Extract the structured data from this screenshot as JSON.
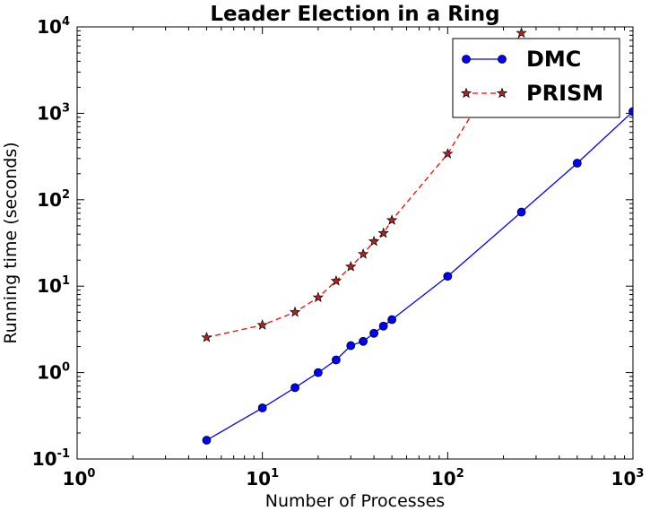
{
  "chart_data": {
    "type": "line",
    "title": "Leader Election in a Ring",
    "xlabel": "Number of Processes",
    "ylabel": "Running time (seconds)",
    "xscale": "log",
    "yscale": "log",
    "xlim": [
      1,
      1000
    ],
    "ylim": [
      0.1,
      10000
    ],
    "x_ticks": [
      {
        "value": 1,
        "base": "10",
        "exp": "0"
      },
      {
        "value": 10,
        "base": "10",
        "exp": "1"
      },
      {
        "value": 100,
        "base": "10",
        "exp": "2"
      },
      {
        "value": 1000,
        "base": "10",
        "exp": "3"
      }
    ],
    "y_ticks": [
      {
        "value": 0.1,
        "base": "10",
        "exp": "-1"
      },
      {
        "value": 1,
        "base": "10",
        "exp": "0"
      },
      {
        "value": 10,
        "base": "10",
        "exp": "1"
      },
      {
        "value": 100,
        "base": "10",
        "exp": "2"
      },
      {
        "value": 1000,
        "base": "10",
        "exp": "3"
      },
      {
        "value": 10000,
        "base": "10",
        "exp": "4"
      }
    ],
    "grid": false,
    "legend": "top-right",
    "series": [
      {
        "name": "DMC",
        "color": "#0000ff",
        "linestyle": "solid",
        "marker": "circle",
        "x": [
          5,
          10,
          15,
          20,
          25,
          30,
          35,
          40,
          45,
          50,
          100,
          250,
          500,
          1000
        ],
        "y": [
          0.165,
          0.39,
          0.67,
          1.0,
          1.4,
          2.05,
          2.3,
          2.85,
          3.45,
          4.1,
          13.0,
          72,
          265,
          1050
        ]
      },
      {
        "name": "PRISM",
        "color": "#ff0000",
        "linestyle": "dashed",
        "marker": "star",
        "x": [
          5,
          10,
          15,
          20,
          25,
          30,
          35,
          40,
          45,
          50,
          100,
          250
        ],
        "y": [
          2.55,
          3.55,
          5.0,
          7.4,
          11.5,
          16.8,
          23.5,
          33,
          41,
          58,
          340,
          8500
        ]
      }
    ]
  }
}
